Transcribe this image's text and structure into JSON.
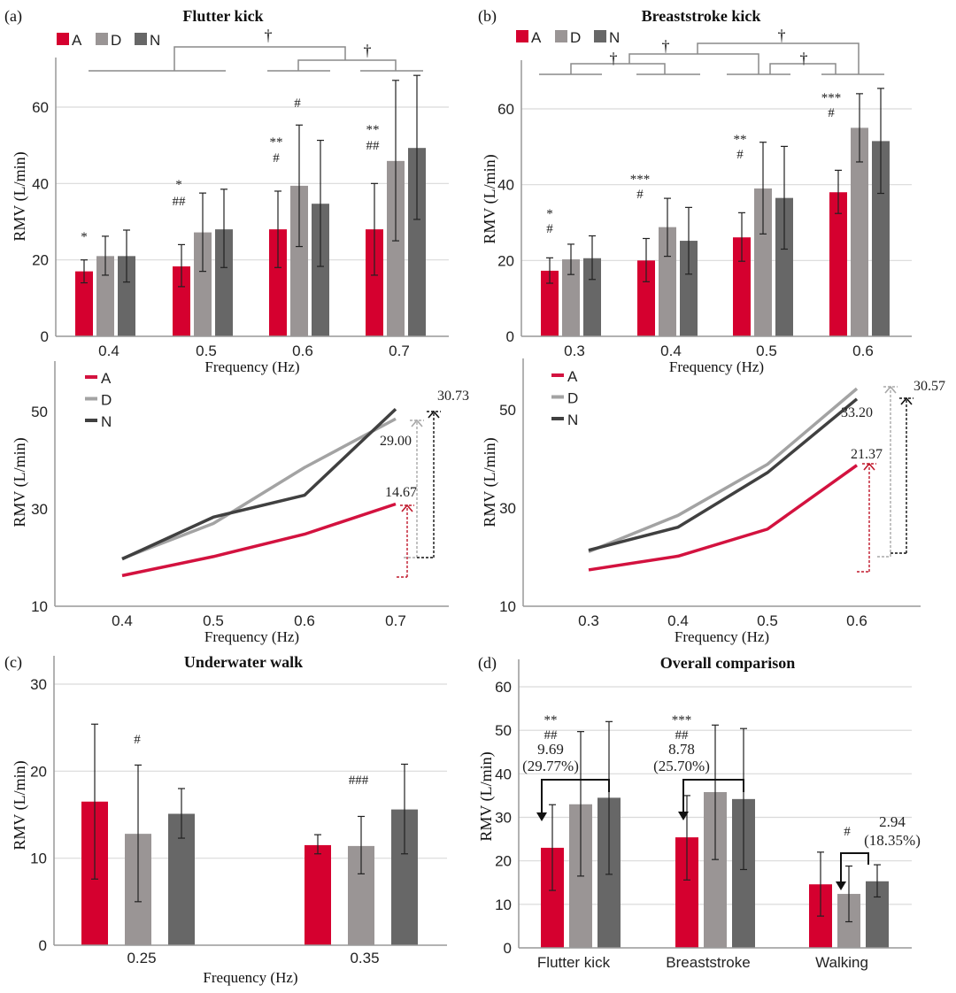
{
  "colors": {
    "A": "#d5002f",
    "D": "#9a9595",
    "N": "#676767",
    "lineA": "#d3123f",
    "lineD": "#a3a3a3",
    "lineN": "#404040",
    "grid": "#d9d9d9",
    "bracket": "#8a8a8a"
  },
  "legend": [
    "A",
    "D",
    "N"
  ],
  "chart_data": [
    {
      "panel": "(a)",
      "title": "Flutter kick",
      "type": "bar",
      "xlabel": "Frequency (Hz)",
      "ylabel": "RMV (L/min)",
      "categories": [
        "0.4",
        "0.5",
        "0.6",
        "0.7"
      ],
      "yticks": [
        0,
        20,
        40,
        60
      ],
      "ylim": [
        0,
        72
      ],
      "grid": true,
      "legend": "top-left",
      "series": [
        {
          "name": "A",
          "values": [
            17.0,
            18.3,
            28.0,
            28.0
          ],
          "error": [
            [
              14.0,
              20.0
            ],
            [
              13.0,
              24.0
            ],
            [
              18.0,
              38.0
            ],
            [
              16.0,
              40.0
            ]
          ]
        },
        {
          "name": "D",
          "values": [
            21.0,
            27.2,
            39.4,
            45.9
          ],
          "error": [
            [
              16.0,
              26.2
            ],
            [
              17.0,
              37.5
            ],
            [
              23.5,
              55.3
            ],
            [
              25.0,
              67.0
            ]
          ]
        },
        {
          "name": "N",
          "values": [
            21.0,
            28.0,
            34.7,
            49.3
          ],
          "error": [
            [
              14.2,
              27.8
            ],
            [
              18.0,
              38.5
            ],
            [
              18.3,
              51.3
            ],
            [
              30.6,
              68.3
            ]
          ]
        }
      ],
      "annotations": [
        {
          "category": "0.4",
          "series": "A",
          "lines": [
            "*"
          ]
        },
        {
          "category": "0.5",
          "series": "A",
          "lines": [
            "*",
            "##"
          ]
        },
        {
          "category": "0.6",
          "series": "A",
          "lines": [
            "**",
            "#"
          ]
        },
        {
          "category": "0.6",
          "series": "D",
          "lines": [
            "#"
          ]
        },
        {
          "category": "0.7",
          "series": "A",
          "lines": [
            "**",
            "##"
          ]
        }
      ],
      "comparisons": [
        {
          "label": "†",
          "groups": [
            [
              "0.4",
              "0.5"
            ],
            [
              "0.6",
              "0.7"
            ]
          ]
        },
        {
          "label": "†",
          "groups": [
            [
              "0.6"
            ],
            [
              "0.7"
            ]
          ]
        }
      ]
    },
    {
      "panel": "(b)",
      "title": "Breaststroke kick",
      "type": "bar",
      "xlabel": "Frequency (Hz)",
      "ylabel": "RMV (L/min)",
      "categories": [
        "0.3",
        "0.4",
        "0.5",
        "0.6"
      ],
      "yticks": [
        0,
        20,
        40,
        60
      ],
      "ylim": [
        0,
        72
      ],
      "grid": true,
      "legend": "top-left",
      "series": [
        {
          "name": "A",
          "values": [
            17.3,
            20.0,
            26.1,
            38.0
          ],
          "error": [
            [
              14.0,
              20.7
            ],
            [
              14.4,
              25.8
            ],
            [
              19.8,
              32.6
            ],
            [
              32.4,
              43.8
            ]
          ]
        },
        {
          "name": "D",
          "values": [
            20.3,
            28.8,
            39.0,
            55.0
          ],
          "error": [
            [
              16.3,
              24.3
            ],
            [
              21.1,
              36.4
            ],
            [
              27.0,
              51.2
            ],
            [
              46.0,
              64.0
            ]
          ]
        },
        {
          "name": "N",
          "values": [
            20.6,
            25.2,
            36.5,
            51.5
          ],
          "error": [
            [
              15.0,
              26.5
            ],
            [
              16.4,
              34.0
            ],
            [
              23.0,
              50.1
            ],
            [
              37.7,
              65.4
            ]
          ]
        }
      ],
      "annotations": [
        {
          "category": "0.3",
          "series": "A",
          "lines": [
            "*",
            "#"
          ]
        },
        {
          "category": "0.4",
          "series": "A",
          "lines": [
            "***",
            "#"
          ]
        },
        {
          "category": "0.5",
          "series": "A",
          "lines": [
            "**",
            "#"
          ]
        },
        {
          "category": "0.6",
          "series": "A",
          "lines": [
            "***",
            "#"
          ]
        }
      ],
      "comparisons": [
        {
          "label": "†",
          "groups": [
            [
              "0.3"
            ],
            [
              "0.4"
            ]
          ]
        },
        {
          "label": "†",
          "groups": [
            [
              "0.3",
              "0.4"
            ],
            [
              "0.5"
            ]
          ]
        },
        {
          "label": "†",
          "groups": [
            [
              "0.3",
              "0.4",
              "0.5"
            ],
            [
              "0.6"
            ]
          ]
        },
        {
          "label": "†",
          "groups": [
            [
              "0.5"
            ],
            [
              "0.6"
            ]
          ]
        }
      ]
    },
    {
      "type": "line",
      "xlabel": "Frequency (Hz)",
      "ylabel": "RMV (L/min)",
      "x": [
        "0.4",
        "0.5",
        "0.6",
        "0.7"
      ],
      "yticks": [
        10,
        30,
        50
      ],
      "ylim": [
        10,
        58
      ],
      "legend": "top-left",
      "series": [
        {
          "name": "A",
          "values": [
            16.3,
            20.2,
            24.8,
            31.0
          ]
        },
        {
          "name": "D",
          "values": [
            19.8,
            27.0,
            38.5,
            48.5
          ]
        },
        {
          "name": "N",
          "values": [
            19.7,
            28.3,
            32.8,
            50.5
          ]
        }
      ],
      "differences": [
        {
          "series": "A",
          "label": "14.67"
        },
        {
          "series": "D",
          "label": "29.00"
        },
        {
          "series": "N",
          "label": "30.73"
        }
      ]
    },
    {
      "type": "line",
      "xlabel": "Frequency (Hz)",
      "ylabel": "RMV (L/min)",
      "x": [
        "0.3",
        "0.4",
        "0.5",
        "0.6"
      ],
      "yticks": [
        10,
        30,
        50
      ],
      "ylim": [
        10,
        58
      ],
      "legend": "top-left",
      "series": [
        {
          "name": "A",
          "values": [
            17.4,
            20.2,
            25.7,
            38.7
          ]
        },
        {
          "name": "D",
          "values": [
            21.1,
            28.5,
            38.9,
            54.3
          ]
        },
        {
          "name": "N",
          "values": [
            21.4,
            26.1,
            37.2,
            52.2
          ]
        }
      ],
      "differences": [
        {
          "series": "A",
          "label": "21.37"
        },
        {
          "series": "D",
          "label": "33.20"
        },
        {
          "series": "N",
          "label": "30.57"
        }
      ]
    },
    {
      "panel": "(c)",
      "title": "Underwater walk",
      "type": "bar",
      "xlabel": "Frequency (Hz)",
      "ylabel": "RMV (L/min)",
      "categories": [
        "0.25",
        "0.35"
      ],
      "yticks": [
        0,
        10,
        20,
        30
      ],
      "ylim": [
        0,
        33
      ],
      "grid": true,
      "series": [
        {
          "name": "A",
          "values": [
            16.5,
            11.5
          ],
          "error": [
            [
              7.6,
              25.4
            ],
            [
              10.5,
              12.7
            ]
          ]
        },
        {
          "name": "D",
          "values": [
            12.8,
            11.4
          ],
          "error": [
            [
              5.0,
              20.7
            ],
            [
              8.2,
              14.8
            ]
          ]
        },
        {
          "name": "N",
          "values": [
            15.1,
            15.6
          ],
          "error": [
            [
              12.3,
              18.0
            ],
            [
              10.5,
              20.8
            ]
          ]
        }
      ],
      "annotations": [
        {
          "category": "0.25",
          "series": "D",
          "lines": [
            "#"
          ]
        },
        {
          "category": "0.35",
          "series": "D",
          "lines": [
            "###"
          ]
        }
      ]
    },
    {
      "panel": "(d)",
      "title": "Overall comparison",
      "type": "bar",
      "xlabel": "",
      "ylabel": "RMV (L/min)",
      "categories": [
        "Flutter kick",
        "Breaststroke",
        "Walking"
      ],
      "yticks": [
        0,
        10,
        20,
        30,
        40,
        50,
        60
      ],
      "ylim": [
        0,
        66
      ],
      "grid": true,
      "series": [
        {
          "name": "A",
          "values": [
            23.0,
            25.4,
            14.6
          ],
          "error": [
            [
              13.2,
              32.9
            ],
            [
              15.6,
              35.0
            ],
            [
              7.3,
              22.0
            ]
          ]
        },
        {
          "name": "D",
          "values": [
            33.0,
            35.8,
            12.4
          ],
          "error": [
            [
              16.5,
              49.7
            ],
            [
              20.3,
              51.2
            ],
            [
              6.0,
              18.8
            ]
          ]
        },
        {
          "name": "N",
          "values": [
            34.5,
            34.2,
            15.3
          ],
          "error": [
            [
              16.9,
              52.0
            ],
            [
              18.0,
              50.4
            ],
            [
              11.7,
              19.1
            ]
          ]
        }
      ],
      "annotations": [
        {
          "category": "Flutter kick",
          "series": "A",
          "lines": [
            "**",
            "##",
            "9.69",
            "(29.77%)"
          ]
        },
        {
          "category": "Breaststroke",
          "series": "A",
          "lines": [
            "***",
            "##",
            "8.78",
            "(25.70%)"
          ]
        },
        {
          "category": "Walking",
          "series": "D",
          "lines": [
            "#"
          ]
        },
        {
          "category": "Walking",
          "series": "N",
          "lines": [
            "2.94",
            "(18.35%)"
          ]
        }
      ]
    }
  ]
}
